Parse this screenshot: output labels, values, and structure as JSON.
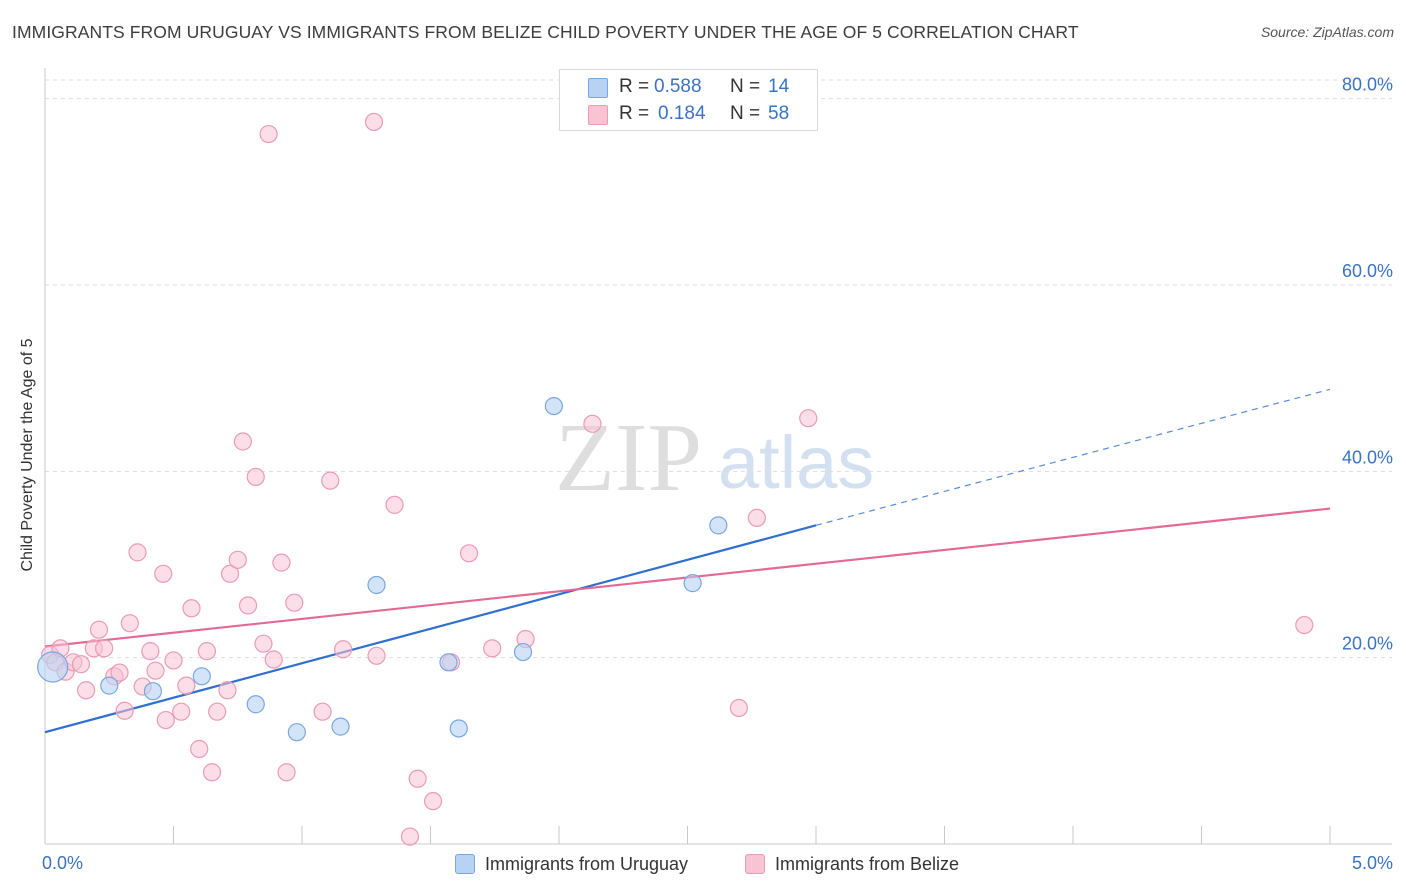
{
  "title": "IMMIGRANTS FROM URUGUAY VS IMMIGRANTS FROM BELIZE CHILD POVERTY UNDER THE AGE OF 5 CORRELATION CHART",
  "source": "Source: ZipAtlas.com",
  "watermark": {
    "zip": "ZIP",
    "atlas": "atlas"
  },
  "legend_top": {
    "rows": [
      {
        "r_label": "R = ",
        "r_value": "0.588",
        "n_label": "N = ",
        "n_value": "14"
      },
      {
        "r_label": "R = ",
        "r_value": "0.184",
        "n_label": "N = ",
        "n_value": "58"
      }
    ]
  },
  "legend_bottom": {
    "series_a": "Immigrants from Uruguay",
    "series_b": "Immigrants from Belize"
  },
  "colors": {
    "uruguay_fill": "#b8d2f3",
    "uruguay_stroke": "#7aa6e0",
    "uruguay_line": "#2f6fd0",
    "belize_fill": "#f8c3d3",
    "belize_stroke": "#ea9bb5",
    "belize_line": "#e36a95",
    "axis_text": "#3a72c4",
    "grid": "#dddddd"
  },
  "chart_data": {
    "type": "scatter",
    "title": "IMMIGRANTS FROM URUGUAY VS IMMIGRANTS FROM BELIZE CHILD POVERTY UNDER THE AGE OF 5 CORRELATION CHART",
    "xlabel": "",
    "ylabel": "Child Poverty Under the Age of 5",
    "xlim": [
      0,
      5
    ],
    "ylim": [
      0,
      82
    ],
    "x_tick_labels": [
      {
        "value": 0,
        "label": "0.0%"
      },
      {
        "value": 5,
        "label": "5.0%"
      }
    ],
    "y_tick_labels": [
      {
        "value": 20,
        "label": "20.0%"
      },
      {
        "value": 40,
        "label": "40.0%"
      },
      {
        "value": 60,
        "label": "60.0%"
      },
      {
        "value": 80,
        "label": "80.0%"
      }
    ],
    "series": [
      {
        "name": "Immigrants from Uruguay",
        "R": 0.588,
        "N": 14,
        "points": [
          {
            "x": 0.03,
            "y": 19.0,
            "big": true
          },
          {
            "x": 0.25,
            "y": 17.0
          },
          {
            "x": 0.42,
            "y": 16.4
          },
          {
            "x": 0.61,
            "y": 18.0
          },
          {
            "x": 0.82,
            "y": 15.0
          },
          {
            "x": 0.98,
            "y": 12.0
          },
          {
            "x": 1.15,
            "y": 12.6
          },
          {
            "x": 1.29,
            "y": 27.8
          },
          {
            "x": 1.57,
            "y": 19.5
          },
          {
            "x": 1.61,
            "y": 12.4
          },
          {
            "x": 1.86,
            "y": 20.6
          },
          {
            "x": 1.98,
            "y": 47.0
          },
          {
            "x": 2.52,
            "y": 28.0
          },
          {
            "x": 2.62,
            "y": 34.2
          }
        ],
        "trend": {
          "x0": 0.0,
          "y0": 12.0,
          "x1": 3.0,
          "y1": 34.2,
          "x_dash_end": 5.0,
          "y_dash_end": 48.8
        }
      },
      {
        "name": "Immigrants from Belize",
        "R": 0.184,
        "N": 58,
        "points": [
          {
            "x": 0.02,
            "y": 20.3
          },
          {
            "x": 0.04,
            "y": 19.5
          },
          {
            "x": 0.06,
            "y": 21.0
          },
          {
            "x": 0.08,
            "y": 18.5
          },
          {
            "x": 0.11,
            "y": 19.5
          },
          {
            "x": 0.14,
            "y": 19.3
          },
          {
            "x": 0.16,
            "y": 16.5
          },
          {
            "x": 0.19,
            "y": 21.0
          },
          {
            "x": 0.21,
            "y": 23.0
          },
          {
            "x": 0.23,
            "y": 21.0
          },
          {
            "x": 0.27,
            "y": 18.0
          },
          {
            "x": 0.29,
            "y": 18.4
          },
          {
            "x": 0.31,
            "y": 14.3
          },
          {
            "x": 0.33,
            "y": 23.7
          },
          {
            "x": 0.36,
            "y": 31.3
          },
          {
            "x": 0.38,
            "y": 16.9
          },
          {
            "x": 0.41,
            "y": 20.7
          },
          {
            "x": 0.43,
            "y": 18.6
          },
          {
            "x": 0.46,
            "y": 29.0
          },
          {
            "x": 0.47,
            "y": 13.3
          },
          {
            "x": 0.5,
            "y": 19.7
          },
          {
            "x": 0.53,
            "y": 14.2
          },
          {
            "x": 0.55,
            "y": 17.0
          },
          {
            "x": 0.57,
            "y": 25.3
          },
          {
            "x": 0.6,
            "y": 10.2
          },
          {
            "x": 0.63,
            "y": 20.7
          },
          {
            "x": 0.65,
            "y": 7.7
          },
          {
            "x": 0.67,
            "y": 14.2
          },
          {
            "x": 0.71,
            "y": 16.5
          },
          {
            "x": 0.72,
            "y": 29.0
          },
          {
            "x": 0.75,
            "y": 30.5
          },
          {
            "x": 0.77,
            "y": 43.2
          },
          {
            "x": 0.79,
            "y": 25.6
          },
          {
            "x": 0.82,
            "y": 39.4
          },
          {
            "x": 0.85,
            "y": 21.5
          },
          {
            "x": 0.87,
            "y": 76.2
          },
          {
            "x": 0.89,
            "y": 19.8
          },
          {
            "x": 0.92,
            "y": 30.2
          },
          {
            "x": 0.94,
            "y": 7.7
          },
          {
            "x": 0.97,
            "y": 25.9
          },
          {
            "x": 1.08,
            "y": 14.2
          },
          {
            "x": 1.11,
            "y": 39.0
          },
          {
            "x": 1.16,
            "y": 20.9
          },
          {
            "x": 1.28,
            "y": 77.5
          },
          {
            "x": 1.29,
            "y": 20.2
          },
          {
            "x": 1.36,
            "y": 36.4
          },
          {
            "x": 1.42,
            "y": 0.8
          },
          {
            "x": 1.45,
            "y": 7.0
          },
          {
            "x": 1.51,
            "y": 4.6
          },
          {
            "x": 1.58,
            "y": 19.5
          },
          {
            "x": 1.65,
            "y": 31.2
          },
          {
            "x": 1.74,
            "y": 21.0
          },
          {
            "x": 1.87,
            "y": 22.0
          },
          {
            "x": 2.13,
            "y": 45.1
          },
          {
            "x": 2.7,
            "y": 14.6
          },
          {
            "x": 2.77,
            "y": 35.0
          },
          {
            "x": 2.97,
            "y": 45.7
          },
          {
            "x": 4.9,
            "y": 23.5
          }
        ],
        "trend": {
          "x0": 0.0,
          "y0": 21.2,
          "x1": 5.0,
          "y1": 36.0
        }
      }
    ]
  }
}
